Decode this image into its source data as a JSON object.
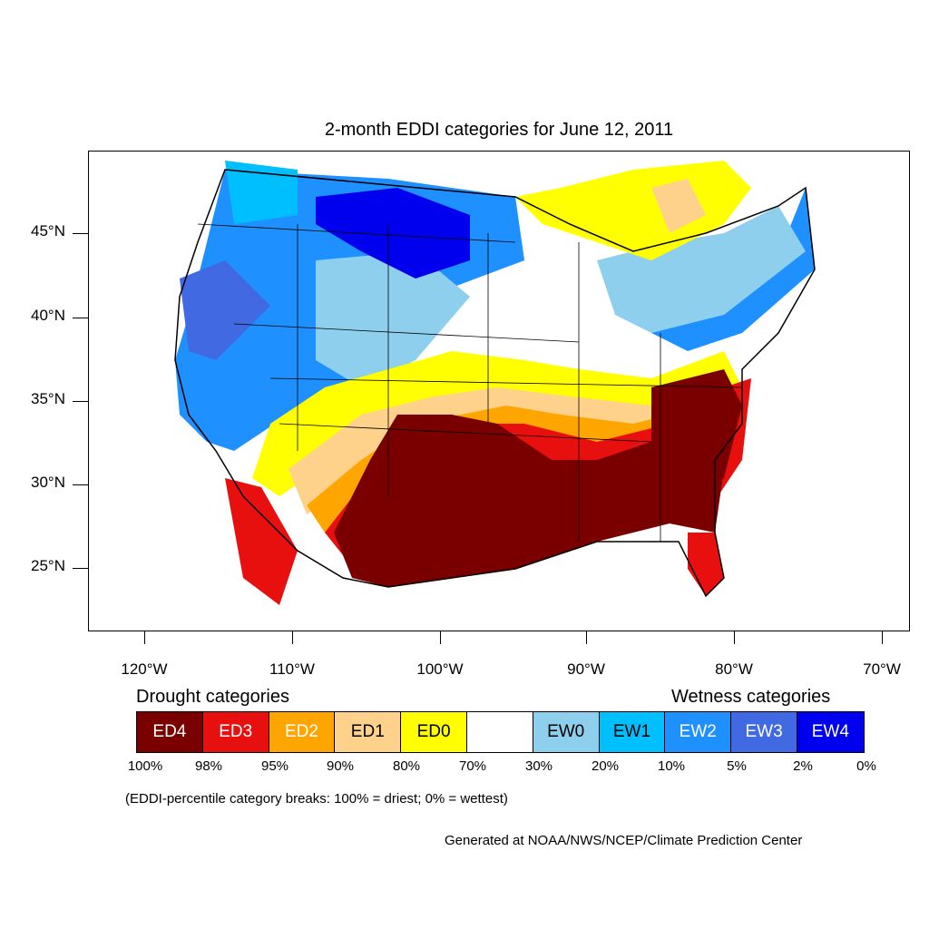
{
  "title": "2-month EDDI categories for June 12, 2011",
  "lat_labels": [
    "45°N",
    "40°N",
    "35°N",
    "30°N",
    "25°N"
  ],
  "lon_labels": [
    "120°W",
    "110°W",
    "100°W",
    "90°W",
    "80°W",
    "70°W"
  ],
  "legend": {
    "drought_heading": "Drought categories",
    "wetness_heading": "Wetness categories",
    "categories": [
      {
        "label": "ED4",
        "color": "#7a0000",
        "text_color": "#ffffff"
      },
      {
        "label": "ED3",
        "color": "#e8100f",
        "text_color": "#ffffff"
      },
      {
        "label": "ED2",
        "color": "#ffa500",
        "text_color": "#ffffff"
      },
      {
        "label": "ED1",
        "color": "#ffd28c",
        "text_color": "#000000"
      },
      {
        "label": "ED0",
        "color": "#ffff00",
        "text_color": "#000000"
      },
      {
        "label": "",
        "color": "#ffffff",
        "text_color": "#000000"
      },
      {
        "label": "EW0",
        "color": "#8fcfee",
        "text_color": "#000000"
      },
      {
        "label": "EW1",
        "color": "#00bfff",
        "text_color": "#000000"
      },
      {
        "label": "EW2",
        "color": "#1e90ff",
        "text_color": "#ffffff"
      },
      {
        "label": "EW3",
        "color": "#4169e1",
        "text_color": "#ffffff"
      },
      {
        "label": "EW4",
        "color": "#0000ee",
        "text_color": "#ffffff"
      }
    ],
    "breaks": [
      "100%",
      "98%",
      "95%",
      "90%",
      "80%",
      "70%",
      "30%",
      "20%",
      "10%",
      "5%",
      "2%",
      "0%"
    ]
  },
  "note": "(EDDI-percentile category breaks: 100% = driest; 0% = wettest)",
  "credit": "Generated at NOAA/NWS/NCEP/Climate Prediction Center"
}
